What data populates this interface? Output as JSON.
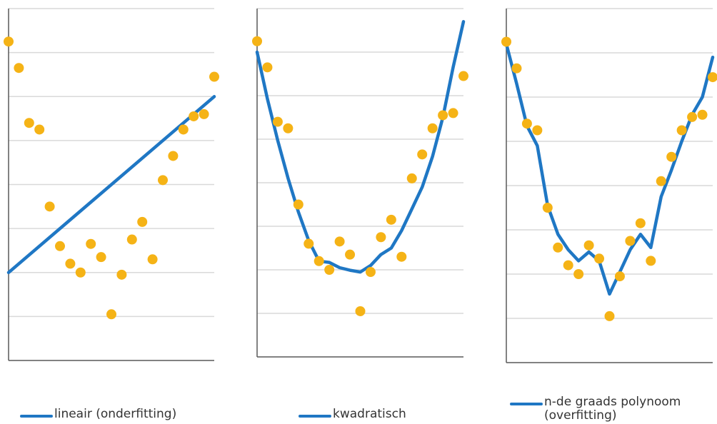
{
  "colors": {
    "line": "#1f77c4",
    "points": "#f5b316",
    "grid": "#d9d9d9",
    "axis": "#595959"
  },
  "chart_data": [
    {
      "type": "scatter",
      "title": "",
      "xlabel": "",
      "ylabel": "",
      "xlim": [
        0,
        20
      ],
      "ylim": [
        0,
        8
      ],
      "grid": true,
      "legend_position": "bottom",
      "points": [
        [
          0,
          7.25
        ],
        [
          1,
          6.65
        ],
        [
          2,
          5.4
        ],
        [
          3,
          5.25
        ],
        [
          4,
          3.5
        ],
        [
          5,
          2.6
        ],
        [
          6,
          2.2
        ],
        [
          7,
          2.0
        ],
        [
          8,
          2.65
        ],
        [
          9,
          2.35
        ],
        [
          10,
          1.05
        ],
        [
          11,
          1.95
        ],
        [
          12,
          2.75
        ],
        [
          13,
          3.15
        ],
        [
          14,
          2.3
        ],
        [
          15,
          4.1
        ],
        [
          16,
          4.65
        ],
        [
          17,
          5.25
        ],
        [
          18,
          5.55
        ],
        [
          19,
          5.6
        ],
        [
          20,
          6.45
        ]
      ],
      "fit": {
        "name": "lineair (onderfitting)",
        "x": [
          0,
          20
        ],
        "y": [
          2.0,
          6.0
        ]
      }
    },
    {
      "type": "scatter",
      "title": "",
      "xlabel": "",
      "ylabel": "",
      "xlim": [
        0,
        20
      ],
      "ylim": [
        0,
        8
      ],
      "grid": true,
      "legend_position": "bottom",
      "points": [
        [
          0,
          7.25
        ],
        [
          1,
          6.65
        ],
        [
          2,
          5.4
        ],
        [
          3,
          5.25
        ],
        [
          4,
          3.5
        ],
        [
          5,
          2.6
        ],
        [
          6,
          2.2
        ],
        [
          7,
          2.0
        ],
        [
          8,
          2.65
        ],
        [
          9,
          2.35
        ],
        [
          10,
          1.05
        ],
        [
          11,
          1.95
        ],
        [
          12,
          2.75
        ],
        [
          13,
          3.15
        ],
        [
          14,
          2.3
        ],
        [
          15,
          4.1
        ],
        [
          16,
          4.65
        ],
        [
          17,
          5.25
        ],
        [
          18,
          5.55
        ],
        [
          19,
          5.6
        ],
        [
          20,
          6.45
        ]
      ],
      "fit": {
        "name": "kwadratisch",
        "x": [
          0,
          1,
          2,
          3,
          4,
          5,
          6,
          7,
          8,
          9,
          10,
          11,
          12,
          13,
          14,
          15,
          16,
          17,
          18,
          19,
          20
        ],
        "y": [
          7.0,
          5.93,
          4.97,
          4.1,
          3.33,
          2.67,
          2.2,
          2.17,
          2.05,
          1.99,
          1.95,
          2.1,
          2.35,
          2.5,
          2.9,
          3.4,
          3.9,
          4.6,
          5.5,
          6.65,
          7.7
        ]
      }
    },
    {
      "type": "scatter",
      "title": "",
      "xlabel": "",
      "ylabel": "",
      "xlim": [
        0,
        20
      ],
      "ylim": [
        0,
        8
      ],
      "grid": true,
      "legend_position": "bottom",
      "points": [
        [
          0,
          7.25
        ],
        [
          1,
          6.65
        ],
        [
          2,
          5.4
        ],
        [
          3,
          5.25
        ],
        [
          4,
          3.5
        ],
        [
          5,
          2.6
        ],
        [
          6,
          2.2
        ],
        [
          7,
          2.0
        ],
        [
          8,
          2.65
        ],
        [
          9,
          2.35
        ],
        [
          10,
          1.05
        ],
        [
          11,
          1.95
        ],
        [
          12,
          2.75
        ],
        [
          13,
          3.15
        ],
        [
          14,
          2.3
        ],
        [
          15,
          4.1
        ],
        [
          16,
          4.65
        ],
        [
          17,
          5.25
        ],
        [
          18,
          5.55
        ],
        [
          19,
          5.6
        ],
        [
          20,
          6.45
        ]
      ],
      "fit": {
        "name": "n-de graads polynoom (overfitting)",
        "x": [
          0,
          1,
          2,
          3,
          4,
          5,
          6,
          7,
          8,
          9,
          10,
          11,
          12,
          13,
          14,
          15,
          16,
          17,
          18,
          19,
          20
        ],
        "y": [
          7.2,
          6.3,
          5.35,
          4.9,
          3.55,
          2.9,
          2.55,
          2.3,
          2.5,
          2.3,
          1.55,
          2.05,
          2.55,
          2.9,
          2.6,
          3.75,
          4.35,
          5.0,
          5.6,
          6.0,
          6.9
        ]
      }
    }
  ],
  "legend": [
    {
      "lines": [
        "lineair (onderfitting)"
      ]
    },
    {
      "lines": [
        "kwadratisch"
      ]
    },
    {
      "lines": [
        "n-de graads polynoom",
        "(overfitting)"
      ]
    }
  ]
}
